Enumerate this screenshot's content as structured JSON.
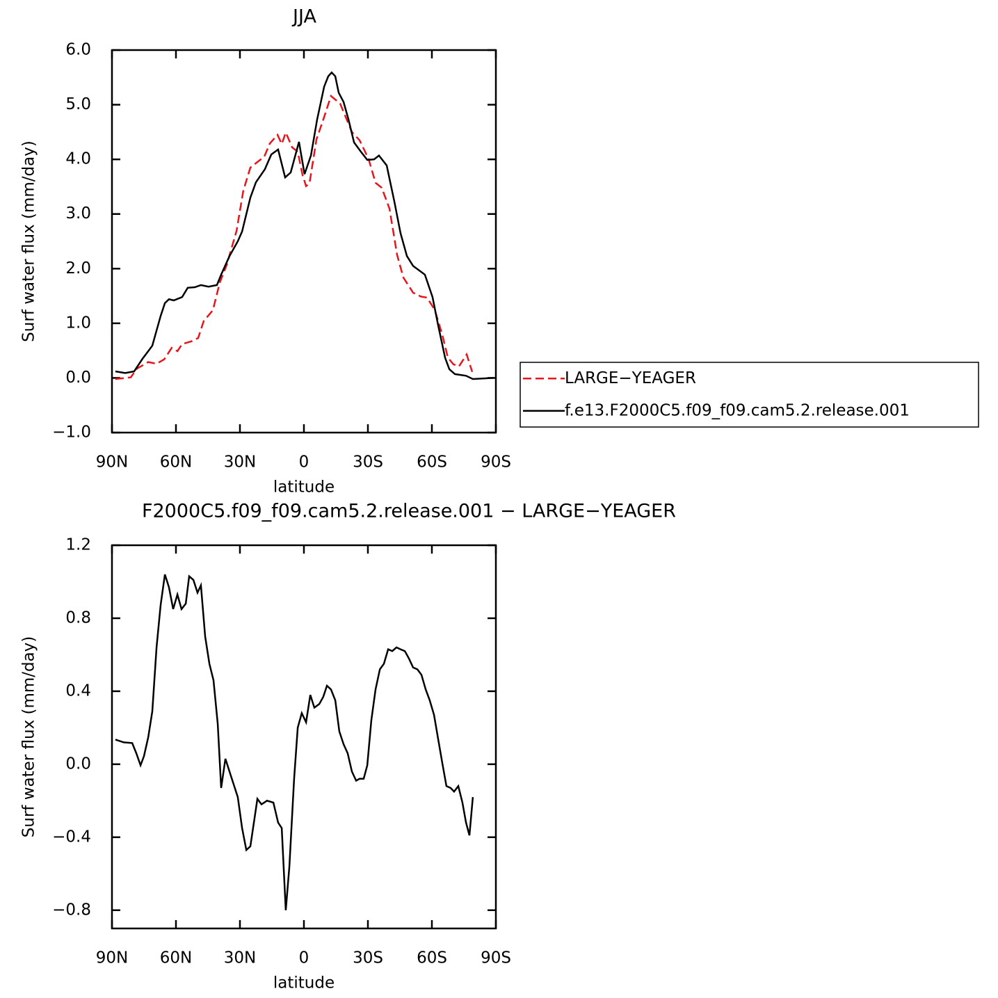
{
  "chart_data": [
    {
      "type": "line",
      "title": "JJA",
      "x_label": "latitude",
      "y_label": "Surf water flux (mm/day)",
      "xlim": [
        90,
        -90
      ],
      "xticks": [
        {
          "value": 90,
          "label": "90N"
        },
        {
          "value": 60,
          "label": "60N"
        },
        {
          "value": 30,
          "label": "30N"
        },
        0,
        {
          "value": -30,
          "label": "30S"
        },
        {
          "value": -60,
          "label": "60S"
        },
        {
          "value": -90,
          "label": "90S"
        }
      ],
      "ylim": [
        -1,
        6
      ],
      "yticks": [
        {
          "value": -1,
          "label": "−1.0"
        },
        {
          "value": 0,
          "label": "0.0"
        },
        {
          "value": 1,
          "label": "1.0"
        },
        {
          "value": 2,
          "label": "2.0"
        },
        {
          "value": 3,
          "label": "3.0"
        },
        {
          "value": 4,
          "label": "4.0"
        },
        {
          "value": 5,
          "label": "5.0"
        },
        {
          "value": 6,
          "label": "6.0"
        }
      ],
      "legend": "right",
      "series": [
        {
          "name": "LARGE−YEAGER",
          "color": "#e8141c",
          "dash": "dashed",
          "x": [
            88.4,
            81.2,
            78.3,
            73.0,
            69.1,
            65.5,
            62.0,
            59.3,
            57.1,
            52.8,
            49.6,
            47.0,
            42.7,
            39.5,
            36.2,
            31.6,
            28.4,
            25.1,
            22.2,
            18.6,
            16.0,
            12.4,
            10.4,
            8.5,
            5.5,
            2.9,
            0.7,
            -1.0,
            -2.6,
            -5.9,
            -9.1,
            -12.7,
            -17.0,
            -22.5,
            -26.1,
            -30.3,
            -33.6,
            -36.5,
            -40.1,
            -43.7,
            -46.6,
            -51.2,
            -54.8,
            -57.7,
            -61.3,
            -64.9,
            -67.5,
            -70.1,
            -72.7,
            -76.3,
            -78.9
          ],
          "values": [
            -0.02,
            0.01,
            0.17,
            0.29,
            0.26,
            0.34,
            0.55,
            0.49,
            0.62,
            0.67,
            0.73,
            1.04,
            1.24,
            1.74,
            2.07,
            2.69,
            3.43,
            3.85,
            3.94,
            4.05,
            4.29,
            4.45,
            4.28,
            4.49,
            4.22,
            4.14,
            3.72,
            3.51,
            3.56,
            4.37,
            4.73,
            5.16,
            5.02,
            4.5,
            4.35,
            4.01,
            3.57,
            3.48,
            3.1,
            2.25,
            1.84,
            1.56,
            1.49,
            1.47,
            1.25,
            0.79,
            0.37,
            0.25,
            0.21,
            0.43,
            0.11
          ]
        },
        {
          "name": "f.e13.F2000C5.f09_f09.cam5.2.release.001",
          "color": "#000000",
          "dash": "solid",
          "x": [
            88.4,
            83.8,
            79.6,
            75.7,
            71.1,
            67.2,
            65.2,
            63.3,
            61.0,
            57.1,
            54.5,
            51.2,
            48.3,
            44.7,
            40.8,
            38.8,
            34.9,
            31.0,
            29.0,
            25.1,
            22.5,
            18.3,
            15.3,
            12.1,
            8.8,
            6.2,
            2.3,
            -0.3,
            -3.3,
            -6.2,
            -9.5,
            -11.4,
            -13.0,
            -14.7,
            -16.3,
            -18.6,
            -20.9,
            -23.5,
            -26.7,
            -29.7,
            -32.9,
            -35.2,
            -38.8,
            -42.4,
            -45.3,
            -48.3,
            -51.2,
            -56.7,
            -60.3,
            -62.9,
            -66.2,
            -68.2,
            -70.8,
            -76.0,
            -79.2,
            -89.0
          ],
          "values": [
            0.12,
            0.09,
            0.12,
            0.35,
            0.59,
            1.13,
            1.37,
            1.44,
            1.42,
            1.48,
            1.65,
            1.66,
            1.7,
            1.67,
            1.7,
            1.89,
            2.23,
            2.5,
            2.68,
            3.3,
            3.58,
            3.82,
            4.09,
            4.18,
            3.67,
            3.76,
            4.32,
            3.73,
            4.07,
            4.73,
            5.33,
            5.52,
            5.59,
            5.52,
            5.22,
            5.05,
            4.73,
            4.31,
            4.14,
            3.99,
            4.0,
            4.07,
            3.89,
            3.23,
            2.65,
            2.23,
            2.05,
            1.89,
            1.48,
            0.97,
            0.37,
            0.16,
            0.07,
            0.04,
            -0.02,
            0.0
          ]
        }
      ]
    },
    {
      "type": "line",
      "title": "F2000C5.f09_f09.cam5.2.release.001 − LARGE−YEAGER",
      "x_label": "latitude",
      "y_label": "Surf water flux (mm/day)",
      "xlim": [
        90,
        -90
      ],
      "xticks": [
        {
          "value": 90,
          "label": "90N"
        },
        {
          "value": 60,
          "label": "60N"
        },
        {
          "value": 30,
          "label": "30N"
        },
        0,
        {
          "value": -30,
          "label": "30S"
        },
        {
          "value": -60,
          "label": "60S"
        },
        {
          "value": -90,
          "label": "90S"
        }
      ],
      "ylim": [
        -0.9,
        1.2
      ],
      "yticks": [
        {
          "value": -0.8,
          "label": "−0.8"
        },
        {
          "value": -0.4,
          "label": "−0.4"
        },
        {
          "value": 0,
          "label": "0.0"
        },
        0.4,
        0.8,
        1.2
      ],
      "series": [
        {
          "color": "#000000",
          "dash": "solid",
          "x": [
            88.4,
            84.5,
            80.5,
            78.6,
            76.6,
            75.0,
            73.0,
            71.1,
            69.1,
            67.2,
            65.2,
            63.3,
            61.3,
            59.3,
            57.4,
            55.4,
            53.8,
            51.8,
            49.9,
            48.3,
            46.3,
            44.3,
            42.4,
            40.4,
            38.8,
            36.8,
            34.9,
            31.0,
            29.0,
            27.0,
            25.1,
            21.8,
            19.9,
            17.3,
            14.3,
            12.1,
            10.4,
            8.5,
            6.8,
            4.6,
            2.9,
            1.0,
            -1.0,
            -3.0,
            -4.9,
            -7.2,
            -9.1,
            -10.8,
            -12.7,
            -14.7,
            -16.6,
            -18.6,
            -20.5,
            -22.5,
            -24.5,
            -26.1,
            -28.0,
            -29.7,
            -31.6,
            -33.6,
            -35.6,
            -37.5,
            -39.5,
            -41.4,
            -43.4,
            -45.3,
            -47.3,
            -49.2,
            -51.2,
            -53.2,
            -55.1,
            -57.1,
            -59.0,
            -61.0,
            -62.9,
            -64.9,
            -66.8,
            -68.8,
            -70.4,
            -72.4,
            -74.3,
            -76.0,
            -77.6,
            -79.2
          ],
          "values": [
            0.135,
            0.12,
            0.116,
            0.06,
            -0.006,
            0.044,
            0.147,
            0.29,
            0.64,
            0.87,
            1.04,
            0.97,
            0.85,
            0.93,
            0.85,
            0.88,
            1.03,
            1.01,
            0.94,
            0.98,
            0.7,
            0.55,
            0.46,
            0.22,
            -0.13,
            0.03,
            -0.04,
            -0.18,
            -0.35,
            -0.47,
            -0.45,
            -0.19,
            -0.22,
            -0.2,
            -0.21,
            -0.32,
            -0.35,
            -0.8,
            -0.56,
            -0.08,
            0.2,
            0.28,
            0.23,
            0.38,
            0.31,
            0.33,
            0.37,
            0.43,
            0.41,
            0.35,
            0.18,
            0.11,
            0.06,
            -0.04,
            -0.09,
            -0.08,
            -0.08,
            -0.006,
            0.24,
            0.41,
            0.52,
            0.55,
            0.63,
            0.62,
            0.64,
            0.63,
            0.62,
            0.58,
            0.53,
            0.52,
            0.49,
            0.41,
            0.35,
            0.27,
            0.14,
            0.006,
            -0.12,
            -0.13,
            -0.15,
            -0.12,
            -0.21,
            -0.32,
            -0.39,
            -0.18
          ]
        }
      ]
    }
  ]
}
